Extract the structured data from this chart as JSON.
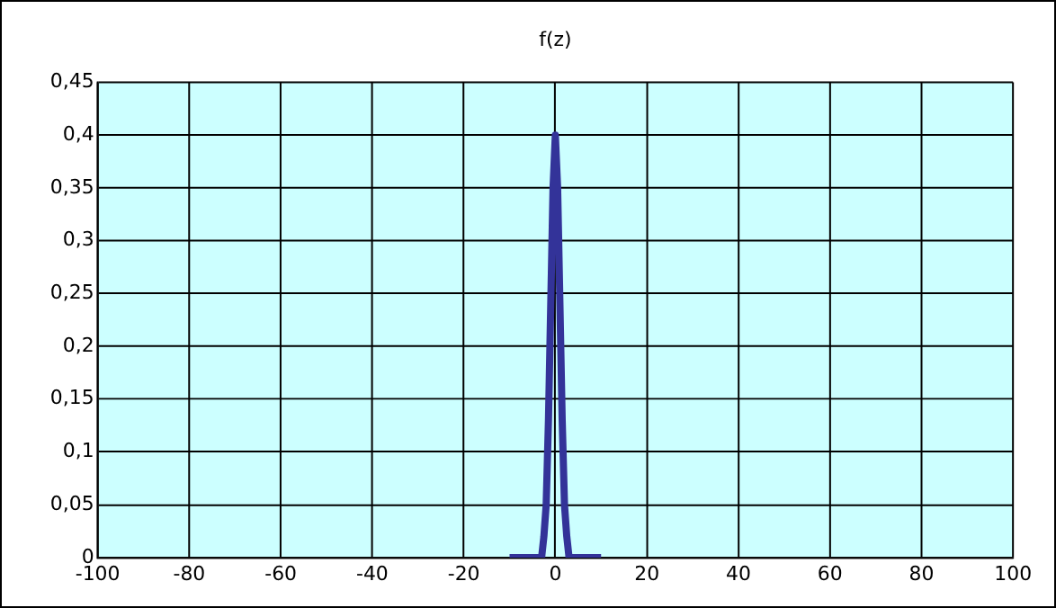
{
  "chart_data": {
    "type": "line",
    "title": "f(z)",
    "series": [
      {
        "color": "#333399",
        "x": [
          -10,
          -3,
          -2.5,
          -2,
          -1.5,
          -1,
          -0.5,
          0,
          0.5,
          1,
          1.5,
          2,
          2.5,
          3,
          10
        ],
        "values": [
          0,
          0,
          0.02,
          0.05,
          0.13,
          0.24,
          0.35,
          0.4,
          0.35,
          0.24,
          0.13,
          0.05,
          0.02,
          0,
          0
        ]
      }
    ],
    "xlim": [
      -100,
      100
    ],
    "xticks": [
      -100,
      -80,
      -60,
      -40,
      -20,
      0,
      20,
      40,
      60,
      80,
      100
    ],
    "ylim": [
      0,
      0.45
    ],
    "yticks": [
      {
        "value": 0,
        "label": "0"
      },
      {
        "value": 0.05,
        "label": "0,05"
      },
      {
        "value": 0.1,
        "label": "0,1"
      },
      {
        "value": 0.15,
        "label": "0,15"
      },
      {
        "value": 0.2,
        "label": "0,2"
      },
      {
        "value": 0.25,
        "label": "0,25"
      },
      {
        "value": 0.3,
        "label": "0,3"
      },
      {
        "value": 0.35,
        "label": "0,35"
      },
      {
        "value": 0.4,
        "label": "0,4"
      },
      {
        "value": 0.45,
        "label": "0,45"
      }
    ],
    "grid": true,
    "legend": false,
    "marker": "none",
    "line_style": "solid"
  }
}
